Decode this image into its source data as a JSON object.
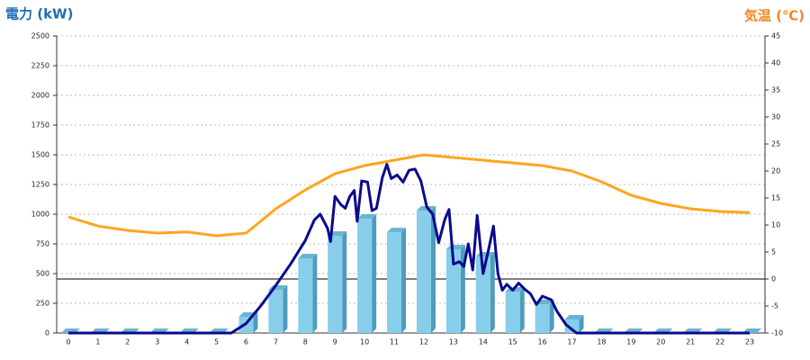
{
  "chart_data": {
    "type": "bar",
    "y_label": "電力 (kW)",
    "y2_label": "気温 (℃)",
    "categories": [
      0,
      1,
      2,
      3,
      4,
      5,
      6,
      7,
      8,
      9,
      10,
      11,
      12,
      13,
      14,
      15,
      16,
      17,
      18,
      19,
      20,
      21,
      22,
      23
    ],
    "ylim": [
      0,
      2500
    ],
    "yticks": [
      0,
      250,
      500,
      750,
      1000,
      1250,
      1500,
      1750,
      2000,
      2250,
      2500
    ],
    "y2lim": [
      -10,
      45
    ],
    "y2ticks": [
      -10,
      -5,
      0,
      5,
      10,
      15,
      20,
      25,
      30,
      35,
      40,
      45
    ],
    "grid": true,
    "y2_zero_line": true,
    "series": [
      {
        "type": "bar",
        "color": "#87ceeb",
        "values": [
          0,
          0,
          0,
          0,
          0,
          0,
          136,
          364,
          629,
          818,
          962,
          848,
          1030,
          705,
          644,
          348,
          242,
          114,
          0,
          0,
          0,
          0,
          0,
          0
        ]
      },
      {
        "type": "line",
        "color": "#0a0a8c",
        "x": [
          0,
          5.5,
          6,
          6.5,
          7,
          7.5,
          8,
          8.3,
          8.5,
          8.75,
          8.85,
          9,
          9.2,
          9.35,
          9.5,
          9.65,
          9.75,
          9.9,
          10.1,
          10.25,
          10.4,
          10.6,
          10.75,
          10.9,
          11.1,
          11.3,
          11.5,
          11.7,
          11.9,
          12.1,
          12.3,
          12.5,
          12.7,
          12.85,
          13,
          13.2,
          13.35,
          13.5,
          13.65,
          13.8,
          14,
          14.2,
          14.35,
          14.5,
          14.65,
          14.8,
          15,
          15.2,
          15.4,
          15.6,
          15.8,
          16,
          16.3,
          16.5,
          16.8,
          17.15,
          23
        ],
        "values": [
          0,
          0,
          80,
          230,
          400,
          580,
          780,
          950,
          1000,
          880,
          770,
          1150,
          1080,
          1050,
          1150,
          1200,
          940,
          1280,
          1270,
          1030,
          1050,
          1310,
          1420,
          1300,
          1330,
          1270,
          1370,
          1380,
          1280,
          1060,
          1000,
          760,
          950,
          1040,
          580,
          600,
          560,
          750,
          530,
          990,
          500,
          720,
          900,
          500,
          360,
          410,
          360,
          420,
          370,
          330,
          240,
          310,
          280,
          180,
          70,
          0,
          0
        ]
      },
      {
        "type": "line",
        "color": "#ffa51f",
        "axis": "y2",
        "values": [
          11.5,
          9.8,
          9,
          8.5,
          8.7,
          8,
          8.5,
          13,
          16.5,
          19.5,
          21,
          22,
          23,
          22.5,
          22,
          21.5,
          21,
          20,
          18,
          15.5,
          14,
          13,
          12.5,
          12.3
        ]
      }
    ]
  }
}
